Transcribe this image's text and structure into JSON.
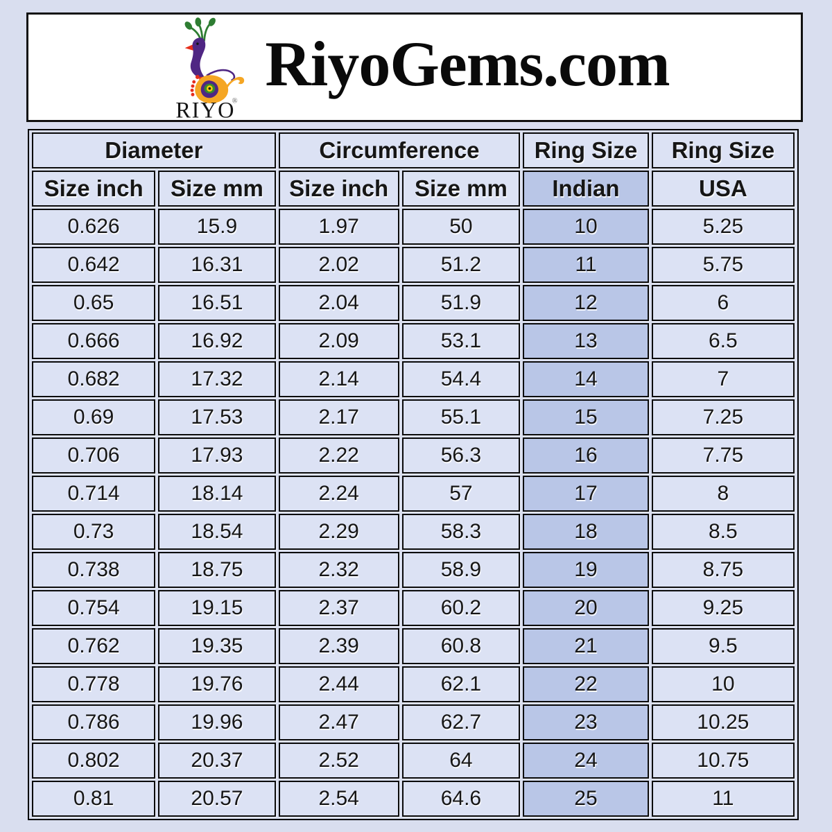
{
  "header": {
    "title": "RiyoGems.com",
    "logo": {
      "brand": "RIYO",
      "registered_mark": "®",
      "icon": "peacock-logo-icon"
    }
  },
  "table": {
    "group_headers": [
      {
        "label": "Diameter"
      },
      {
        "label": "Circumference"
      },
      {
        "label": "Ring Size"
      },
      {
        "label": "Ring Size"
      }
    ],
    "sub_headers": [
      "Size inch",
      "Size mm",
      "Size inch",
      "Size mm",
      "Indian",
      "USA"
    ],
    "rows": [
      [
        "0.626",
        "15.9",
        "1.97",
        "50",
        "10",
        "5.25"
      ],
      [
        "0.642",
        "16.31",
        "2.02",
        "51.2",
        "11",
        "5.75"
      ],
      [
        "0.65",
        "16.51",
        "2.04",
        "51.9",
        "12",
        "6"
      ],
      [
        "0.666",
        "16.92",
        "2.09",
        "53.1",
        "13",
        "6.5"
      ],
      [
        "0.682",
        "17.32",
        "2.14",
        "54.4",
        "14",
        "7"
      ],
      [
        "0.69",
        "17.53",
        "2.17",
        "55.1",
        "15",
        "7.25"
      ],
      [
        "0.706",
        "17.93",
        "2.22",
        "56.3",
        "16",
        "7.75"
      ],
      [
        "0.714",
        "18.14",
        "2.24",
        "57",
        "17",
        "8"
      ],
      [
        "0.73",
        "18.54",
        "2.29",
        "58.3",
        "18",
        "8.5"
      ],
      [
        "0.738",
        "18.75",
        "2.32",
        "58.9",
        "19",
        "8.75"
      ],
      [
        "0.754",
        "19.15",
        "2.37",
        "60.2",
        "20",
        "9.25"
      ],
      [
        "0.762",
        "19.35",
        "2.39",
        "60.8",
        "21",
        "9.5"
      ],
      [
        "0.778",
        "19.76",
        "2.44",
        "62.1",
        "22",
        "10"
      ],
      [
        "0.786",
        "19.96",
        "2.47",
        "62.7",
        "23",
        "10.25"
      ],
      [
        "0.802",
        "20.37",
        "2.52",
        "64",
        "24",
        "10.75"
      ],
      [
        "0.81",
        "20.57",
        "2.54",
        "64.6",
        "25",
        "11"
      ]
    ]
  },
  "colors": {
    "page_bg": "#d9deef",
    "cell_bg": "#dce2f4",
    "indian_column_bg": "#b9c6e7",
    "border": "#000000",
    "logo_purple": "#4f2683",
    "logo_orange": "#f5a623",
    "logo_green": "#2e7d32",
    "logo_red": "#e62e1b",
    "logo_yellow": "#ffd10a"
  }
}
